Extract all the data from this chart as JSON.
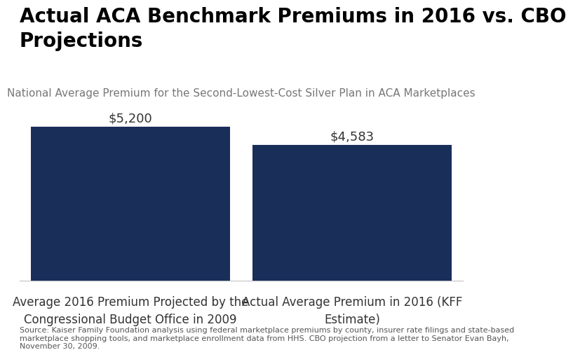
{
  "title": "Actual ACA Benchmark Premiums in 2016 vs. CBO\nProjections",
  "subtitle": "National Average Premium for the Second-Lowest-Cost Silver Plan in ACA Marketplaces",
  "categories": [
    "Average 2016 Premium Projected by the\nCongressional Budget Office in 2009",
    "Actual Average Premium in 2016 (KFF\nEstimate)"
  ],
  "values": [
    5200,
    4583
  ],
  "value_labels": [
    "$5,200",
    "$4,583"
  ],
  "bar_color": "#1a2e5a",
  "ylim": [
    0,
    6000
  ],
  "bar_width": 0.45,
  "bar_positions": [
    0.25,
    0.75
  ],
  "source_text": "Source: Kaiser Family Foundation analysis using federal marketplace premiums by county, insurer rate filings and state-based\nmarketplace shopping tools, and marketplace enrollment data from HHS. CBO projection from a letter to Senator Evan Bayh,\nNovember 30, 2009.",
  "background_color": "#ffffff",
  "title_fontsize": 20,
  "subtitle_fontsize": 11,
  "value_label_fontsize": 13,
  "xlabel_fontsize": 12,
  "source_fontsize": 8
}
